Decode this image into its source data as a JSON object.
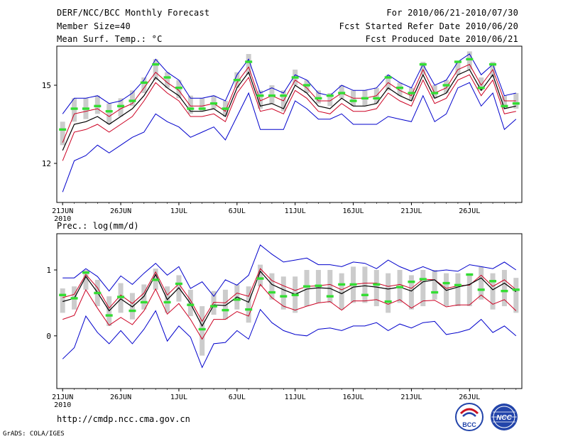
{
  "header": {
    "title": "DERF/NCC/BCC Monthly Forecast",
    "member": "Member Size=40",
    "variable": "Mean Surf. Temp.: °C",
    "period": "For 2010/06/21-2010/07/30",
    "refer_date": "Fcst Started Refer Date 2010/06/20",
    "produced_date": "Fcst Produced Date 2010/06/21"
  },
  "lower_title": "Prec.: log(mm/d)",
  "footer": {
    "url": "http://cmdp.ncc.cma.gov.cn",
    "credit": "GrADS: COLA/IGES"
  },
  "logos": {
    "bcc": "BCC",
    "ncc": "NCC"
  },
  "colors": {
    "envelope": "#0000cc",
    "band": "#cc0022",
    "mean": "#000000",
    "obs": "#33dd33",
    "box": "#cccccc"
  },
  "chart_data": [
    {
      "type": "line",
      "title": "Mean Surf. Temp.: °C",
      "xlabel": "",
      "ylabel": "",
      "x_start": "2010-06-21",
      "n_days": 40,
      "xtick_days": [
        0,
        5,
        10,
        15,
        20,
        25,
        30,
        35
      ],
      "xtick_labels": [
        "21JUN",
        "26JUN",
        "1JUL",
        "6JUL",
        "11JUL",
        "16JUL",
        "21JUL",
        "26JUL"
      ],
      "year_label": "2010",
      "yticks": [
        12,
        15
      ],
      "ylim": [
        10.5,
        16.5
      ],
      "series": [
        {
          "name": "max",
          "color": "#0000cc",
          "values": [
            13.9,
            14.5,
            14.5,
            14.6,
            14.3,
            14.4,
            14.7,
            15.2,
            16.0,
            15.5,
            15.2,
            14.5,
            14.5,
            14.6,
            14.4,
            15.4,
            16.0,
            14.7,
            14.9,
            14.7,
            15.4,
            15.2,
            14.7,
            14.6,
            15.0,
            14.8,
            14.8,
            14.9,
            15.4,
            15.1,
            14.9,
            15.8,
            15.0,
            15.2,
            15.9,
            16.2,
            15.4,
            15.8,
            14.6,
            14.7
          ]
        },
        {
          "name": "upper",
          "color": "#cc0022",
          "values": [
            12.8,
            13.9,
            14.0,
            14.1,
            13.8,
            14.1,
            14.3,
            14.9,
            15.5,
            15.1,
            14.8,
            14.2,
            14.2,
            14.3,
            14.0,
            15.1,
            15.7,
            14.4,
            14.6,
            14.4,
            15.2,
            14.9,
            14.4,
            14.4,
            14.7,
            14.5,
            14.5,
            14.6,
            15.1,
            14.8,
            14.6,
            15.6,
            14.7,
            14.9,
            15.6,
            15.8,
            15.0,
            15.6,
            14.4,
            14.4
          ]
        },
        {
          "name": "mean",
          "color": "#000000",
          "values": [
            12.5,
            13.5,
            13.6,
            13.8,
            13.5,
            13.8,
            14.1,
            14.6,
            15.3,
            14.9,
            14.6,
            14.0,
            14.0,
            14.1,
            13.8,
            14.9,
            15.5,
            14.2,
            14.3,
            14.1,
            15.0,
            14.7,
            14.2,
            14.1,
            14.5,
            14.2,
            14.2,
            14.3,
            14.9,
            14.6,
            14.4,
            15.4,
            14.5,
            14.7,
            15.4,
            15.6,
            14.8,
            15.4,
            14.1,
            14.2
          ]
        },
        {
          "name": "lower",
          "color": "#cc0022",
          "values": [
            12.1,
            13.2,
            13.3,
            13.5,
            13.2,
            13.5,
            13.8,
            14.4,
            15.1,
            14.7,
            14.4,
            13.8,
            13.8,
            13.9,
            13.6,
            14.7,
            15.3,
            14.0,
            14.1,
            13.9,
            14.8,
            14.5,
            14.0,
            13.9,
            14.3,
            14.0,
            14.0,
            14.1,
            14.7,
            14.4,
            14.2,
            15.2,
            14.3,
            14.5,
            15.2,
            15.4,
            14.6,
            15.2,
            13.9,
            14.0
          ]
        },
        {
          "name": "min",
          "color": "#0000cc",
          "values": [
            10.9,
            12.1,
            12.3,
            12.7,
            12.4,
            12.7,
            13.0,
            13.2,
            13.9,
            13.6,
            13.4,
            13.0,
            13.2,
            13.4,
            12.9,
            13.8,
            14.7,
            13.3,
            13.3,
            13.3,
            14.4,
            14.1,
            13.7,
            13.7,
            13.9,
            13.5,
            13.5,
            13.5,
            13.8,
            13.7,
            13.6,
            14.6,
            13.6,
            13.9,
            14.9,
            15.1,
            14.2,
            14.7,
            13.3,
            13.7
          ]
        }
      ],
      "obs": [
        13.3,
        14.1,
        14.1,
        14.2,
        14.0,
        14.2,
        14.4,
        15.1,
        15.8,
        15.3,
        14.9,
        14.1,
        14.1,
        14.3,
        14.1,
        15.2,
        15.9,
        14.6,
        14.6,
        14.6,
        15.3,
        15.0,
        14.5,
        14.6,
        14.7,
        14.4,
        14.5,
        14.5,
        15.3,
        14.9,
        14.7,
        15.8,
        14.7,
        15.0,
        15.9,
        16.0,
        14.9,
        15.8,
        14.2,
        14.3
      ],
      "box_low": [
        12.7,
        13.6,
        13.7,
        13.9,
        13.5,
        13.8,
        14.2,
        14.7,
        15.2,
        14.9,
        14.5,
        13.9,
        14.0,
        14.1,
        13.8,
        14.9,
        15.4,
        14.1,
        14.3,
        14.0,
        15.0,
        14.7,
        14.3,
        14.2,
        14.5,
        14.2,
        14.2,
        14.3,
        14.8,
        14.6,
        14.4,
        15.4,
        14.5,
        14.7,
        15.4,
        15.6,
        14.8,
        15.3,
        14.1,
        14.1
      ],
      "box_high": [
        13.6,
        14.5,
        14.5,
        14.6,
        14.3,
        14.5,
        14.8,
        15.3,
        16.0,
        15.5,
        15.2,
        14.6,
        14.5,
        14.6,
        14.4,
        15.5,
        16.2,
        14.8,
        15.0,
        14.8,
        15.6,
        15.2,
        14.8,
        14.7,
        15.0,
        14.8,
        14.8,
        14.9,
        15.4,
        15.1,
        14.9,
        15.9,
        15.0,
        15.2,
        15.9,
        16.3,
        15.3,
        15.9,
        14.6,
        14.7
      ]
    },
    {
      "type": "line",
      "title": "Prec.: log(mm/d)",
      "xlabel": "",
      "ylabel": "",
      "x_start": "2010-06-21",
      "n_days": 40,
      "xtick_days": [
        0,
        5,
        10,
        15,
        20,
        25,
        30,
        35
      ],
      "xtick_labels": [
        "21JUN",
        "26JUN",
        "1JUL",
        "6JUL",
        "11JUL",
        "16JUL",
        "21JUL",
        "26JUL"
      ],
      "year_label": "2010",
      "yticks": [
        0,
        1
      ],
      "ylim": [
        -0.8,
        1.55
      ],
      "series": [
        {
          "name": "max",
          "color": "#0000cc",
          "values": [
            0.88,
            0.88,
            1.02,
            0.9,
            0.68,
            0.91,
            0.78,
            0.95,
            1.1,
            0.92,
            1.05,
            0.72,
            0.82,
            0.6,
            0.85,
            0.77,
            0.92,
            1.38,
            1.24,
            1.12,
            1.15,
            1.18,
            1.08,
            1.08,
            1.05,
            1.12,
            1.1,
            1.02,
            1.15,
            1.05,
            0.98,
            1.05,
            0.98,
            1.0,
            0.98,
            1.08,
            1.05,
            1.02,
            1.12,
            1.0
          ]
        },
        {
          "name": "upper",
          "color": "#cc0022",
          "values": [
            0.58,
            0.63,
            0.93,
            0.73,
            0.42,
            0.62,
            0.49,
            0.65,
            0.97,
            0.62,
            0.79,
            0.54,
            0.22,
            0.51,
            0.5,
            0.65,
            0.6,
            1.02,
            0.84,
            0.76,
            0.69,
            0.75,
            0.76,
            0.78,
            0.7,
            0.78,
            0.8,
            0.8,
            0.75,
            0.78,
            0.72,
            0.86,
            0.85,
            0.72,
            0.76,
            0.77,
            0.92,
            0.75,
            0.85,
            0.7
          ]
        },
        {
          "name": "mean",
          "color": "#000000",
          "values": [
            0.52,
            0.57,
            0.9,
            0.66,
            0.38,
            0.56,
            0.44,
            0.6,
            0.93,
            0.55,
            0.73,
            0.49,
            0.15,
            0.47,
            0.46,
            0.59,
            0.51,
            0.98,
            0.78,
            0.7,
            0.63,
            0.71,
            0.73,
            0.72,
            0.64,
            0.74,
            0.76,
            0.74,
            0.71,
            0.74,
            0.68,
            0.82,
            0.85,
            0.69,
            0.74,
            0.78,
            0.88,
            0.7,
            0.8,
            0.67
          ]
        },
        {
          "name": "lower",
          "color": "#cc0022",
          "values": [
            0.25,
            0.31,
            0.7,
            0.42,
            0.16,
            0.28,
            0.17,
            0.38,
            0.71,
            0.33,
            0.49,
            0.25,
            -0.05,
            0.25,
            0.25,
            0.37,
            0.3,
            0.78,
            0.58,
            0.45,
            0.39,
            0.45,
            0.5,
            0.52,
            0.39,
            0.53,
            0.53,
            0.55,
            0.48,
            0.55,
            0.42,
            0.53,
            0.54,
            0.44,
            0.47,
            0.47,
            0.62,
            0.48,
            0.55,
            0.38
          ]
        },
        {
          "name": "min",
          "color": "#0000cc",
          "values": [
            -0.35,
            -0.18,
            0.3,
            0.05,
            -0.12,
            0.08,
            -0.12,
            0.1,
            0.38,
            -0.08,
            0.15,
            -0.02,
            -0.48,
            -0.12,
            -0.1,
            0.08,
            -0.05,
            0.4,
            0.2,
            0.08,
            0.02,
            0.0,
            0.1,
            0.12,
            0.08,
            0.15,
            0.15,
            0.2,
            0.08,
            0.18,
            0.12,
            0.2,
            0.22,
            0.02,
            0.05,
            0.1,
            0.25,
            0.05,
            0.15,
            0.0
          ]
        }
      ],
      "obs": [
        0.62,
        0.57,
        0.96,
        0.65,
        0.31,
        0.59,
        0.38,
        0.51,
        0.85,
        0.51,
        0.79,
        0.47,
        0.1,
        0.45,
        0.39,
        0.55,
        0.4,
        0.87,
        0.66,
        0.6,
        0.62,
        0.75,
        0.76,
        0.6,
        0.78,
        0.78,
        0.62,
        0.78,
        0.52,
        0.74,
        0.82,
        0.86,
        0.66,
        0.8,
        0.77,
        0.93,
        0.7,
        0.83,
        0.68,
        0.7
      ],
      "box_low": [
        0.35,
        0.4,
        0.7,
        0.45,
        0.15,
        0.35,
        0.25,
        0.4,
        0.7,
        0.35,
        0.52,
        0.3,
        -0.3,
        0.32,
        0.25,
        0.4,
        0.2,
        0.75,
        0.55,
        0.4,
        0.35,
        0.45,
        0.5,
        0.5,
        0.4,
        0.5,
        0.5,
        0.45,
        0.35,
        0.5,
        0.4,
        0.45,
        0.55,
        0.45,
        0.45,
        0.45,
        0.55,
        0.4,
        0.45,
        0.35
      ],
      "box_high": [
        0.72,
        0.75,
        1.0,
        0.85,
        0.6,
        0.8,
        0.65,
        0.78,
        1.02,
        0.75,
        0.92,
        0.7,
        0.45,
        0.68,
        0.7,
        0.78,
        0.75,
        1.08,
        0.95,
        0.9,
        0.9,
        1.0,
        1.0,
        1.0,
        0.95,
        1.05,
        1.05,
        1.0,
        0.95,
        1.0,
        0.92,
        1.0,
        1.0,
        0.95,
        0.95,
        0.95,
        1.05,
        0.95,
        1.0,
        0.88
      ]
    }
  ]
}
